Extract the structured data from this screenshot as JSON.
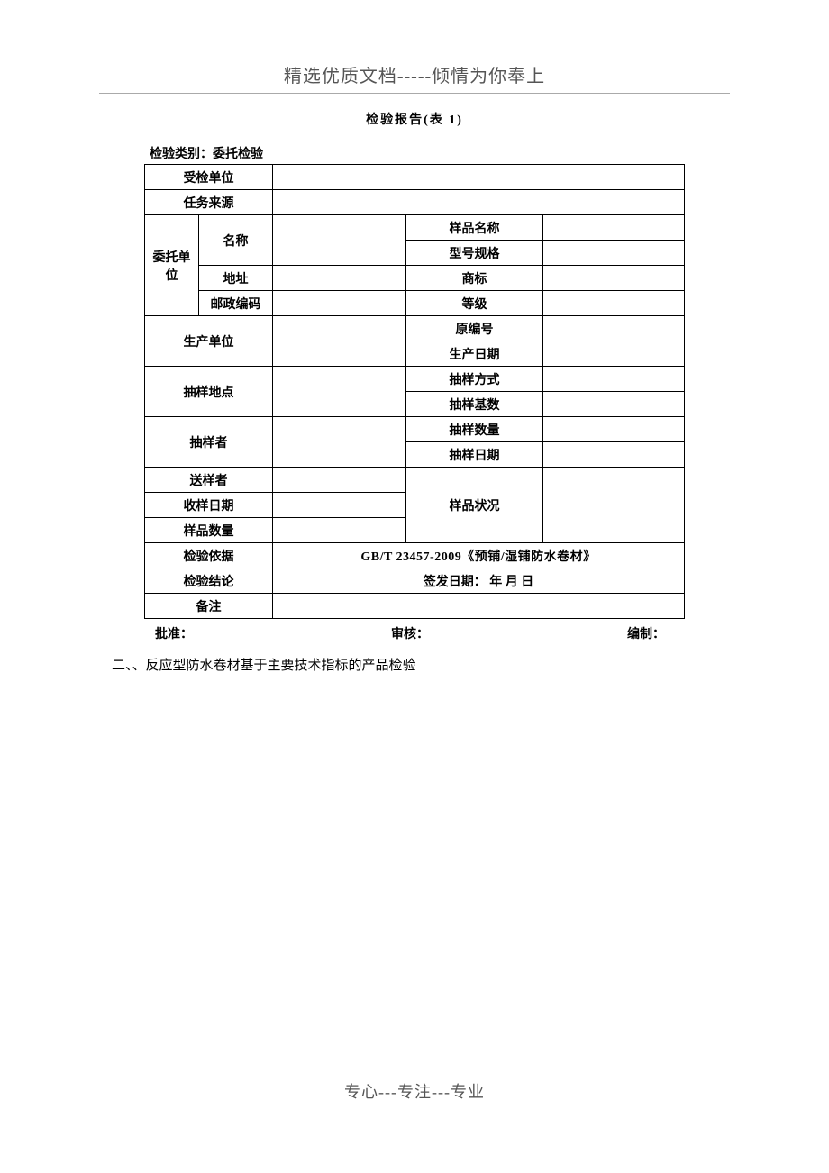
{
  "header": "精选优质文档-----倾情为你奉上",
  "footer": "专心---专注---专业",
  "report_title": "检验报告(表 1)",
  "category_prefix": "检验类别：",
  "category_value": "委托检验",
  "labels": {
    "inspected_unit": "受检单位",
    "task_source": "任务来源",
    "entrust_unit": "委托单位",
    "name": "名称",
    "address": "地址",
    "postal": "邮政编码",
    "sample_name": "样品名称",
    "model_spec": "型号规格",
    "trademark": "商标",
    "grade": "等级",
    "producer": "生产单位",
    "orig_no": "原编号",
    "prod_date": "生产日期",
    "sampling_place": "抽样地点",
    "sampling_method": "抽样方式",
    "sampling_base": "抽样基数",
    "sampler": "抽样者",
    "sample_qty": "抽样数量",
    "sample_date": "抽样日期",
    "sender": "送样者",
    "receive_date": "收样日期",
    "sample_count": "样品数量",
    "sample_status": "样品状况",
    "inspect_basis": "检验依据",
    "conclusion": "检验结论",
    "remark": "备注"
  },
  "basis_value": "GB/T 23457-2009《预铺/湿铺防水卷材》",
  "issue_date": "签发日期：    年    月    日",
  "signatures": {
    "approve": "批准：",
    "review": "审核：",
    "compile": "编制："
  },
  "section2": "二、、反应型防水卷材基于主要技术指标的产品检验"
}
